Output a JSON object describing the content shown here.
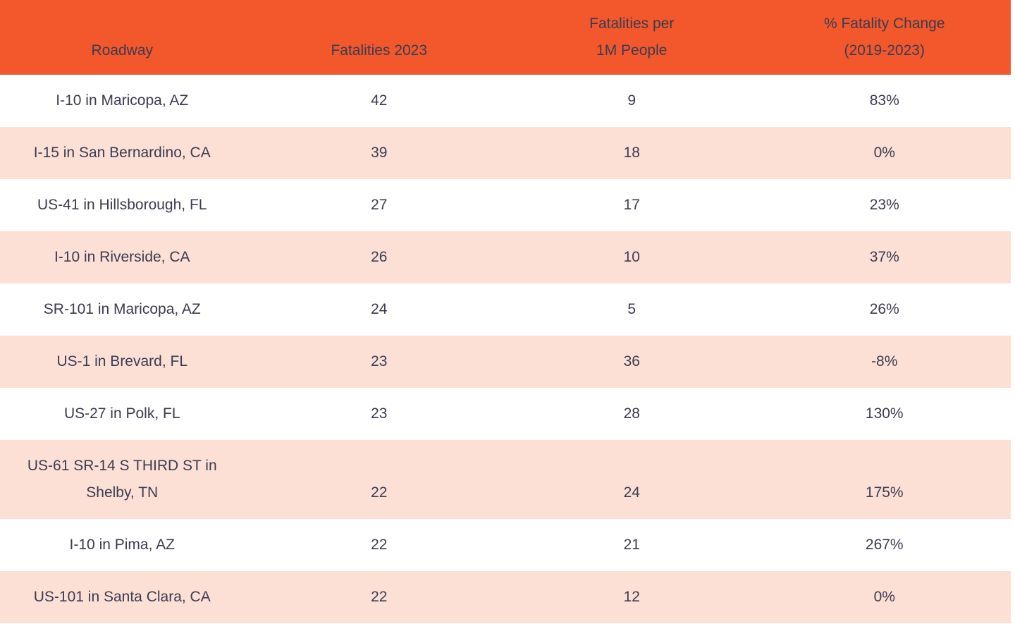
{
  "colors": {
    "header_bg": "#F2582B",
    "stripe_bg": "#FCE0D6",
    "row_bg": "#FFFFFF",
    "text": "#3B3B52"
  },
  "table": {
    "columns": [
      {
        "id": "roadway",
        "lines": [
          "Roadway"
        ]
      },
      {
        "id": "fatalities_2023",
        "lines": [
          "Fatalities 2023"
        ]
      },
      {
        "id": "fatalities_per_1m",
        "lines": [
          "Fatalities per",
          "1M People"
        ]
      },
      {
        "id": "pct_fatality_change",
        "lines": [
          "% Fatality Change",
          "(2019-2023)"
        ]
      }
    ],
    "rows": [
      {
        "roadway": "I-10 in Maricopa, AZ",
        "fatalities_2023": "42",
        "fatalities_per_1m": "9",
        "pct_fatality_change": "83%"
      },
      {
        "roadway": "I-15 in San Bernardino, CA",
        "fatalities_2023": "39",
        "fatalities_per_1m": "18",
        "pct_fatality_change": "0%"
      },
      {
        "roadway": "US-41 in Hillsborough, FL",
        "fatalities_2023": "27",
        "fatalities_per_1m": "17",
        "pct_fatality_change": "23%"
      },
      {
        "roadway": "I-10 in Riverside, CA",
        "fatalities_2023": "26",
        "fatalities_per_1m": "10",
        "pct_fatality_change": "37%"
      },
      {
        "roadway": "SR-101 in Maricopa, AZ",
        "fatalities_2023": "24",
        "fatalities_per_1m": "5",
        "pct_fatality_change": "26%"
      },
      {
        "roadway": "US-1 in Brevard, FL",
        "fatalities_2023": "23",
        "fatalities_per_1m": "36",
        "pct_fatality_change": "-8%"
      },
      {
        "roadway": "US-27 in Polk, FL",
        "fatalities_2023": "23",
        "fatalities_per_1m": "28",
        "pct_fatality_change": "130%"
      },
      {
        "roadway": "US-61 SR-14 S THIRD ST in Shelby, TN",
        "fatalities_2023": "22",
        "fatalities_per_1m": "24",
        "pct_fatality_change": "175%"
      },
      {
        "roadway": "I-10 in Pima, AZ",
        "fatalities_2023": "22",
        "fatalities_per_1m": "21",
        "pct_fatality_change": "267%"
      },
      {
        "roadway": "US-101 in Santa Clara, CA",
        "fatalities_2023": "22",
        "fatalities_per_1m": "12",
        "pct_fatality_change": "0%"
      }
    ]
  },
  "chart_data": {
    "type": "table",
    "columns": [
      "Roadway",
      "Fatalities 2023",
      "Fatalities per 1M People",
      "% Fatality Change (2019-2023)"
    ],
    "rows": [
      [
        "I-10 in Maricopa, AZ",
        42,
        9,
        "83%"
      ],
      [
        "I-15 in San Bernardino, CA",
        39,
        18,
        "0%"
      ],
      [
        "US-41 in Hillsborough, FL",
        27,
        17,
        "23%"
      ],
      [
        "I-10 in Riverside, CA",
        26,
        10,
        "37%"
      ],
      [
        "SR-101 in Maricopa, AZ",
        24,
        5,
        "26%"
      ],
      [
        "US-1 in Brevard, FL",
        23,
        36,
        "-8%"
      ],
      [
        "US-27 in Polk, FL",
        23,
        28,
        "130%"
      ],
      [
        "US-61 SR-14 S THIRD ST in Shelby, TN",
        22,
        24,
        "175%"
      ],
      [
        "I-10 in Pima, AZ",
        22,
        21,
        "267%"
      ],
      [
        "US-101 in Santa Clara, CA",
        22,
        12,
        "0%"
      ]
    ],
    "layout_hints": {
      "header_background": "#F2582B",
      "zebra_striping": true,
      "stripe_background": "#FCE0D6",
      "first_column_align": "left",
      "other_columns_align": "center"
    }
  }
}
